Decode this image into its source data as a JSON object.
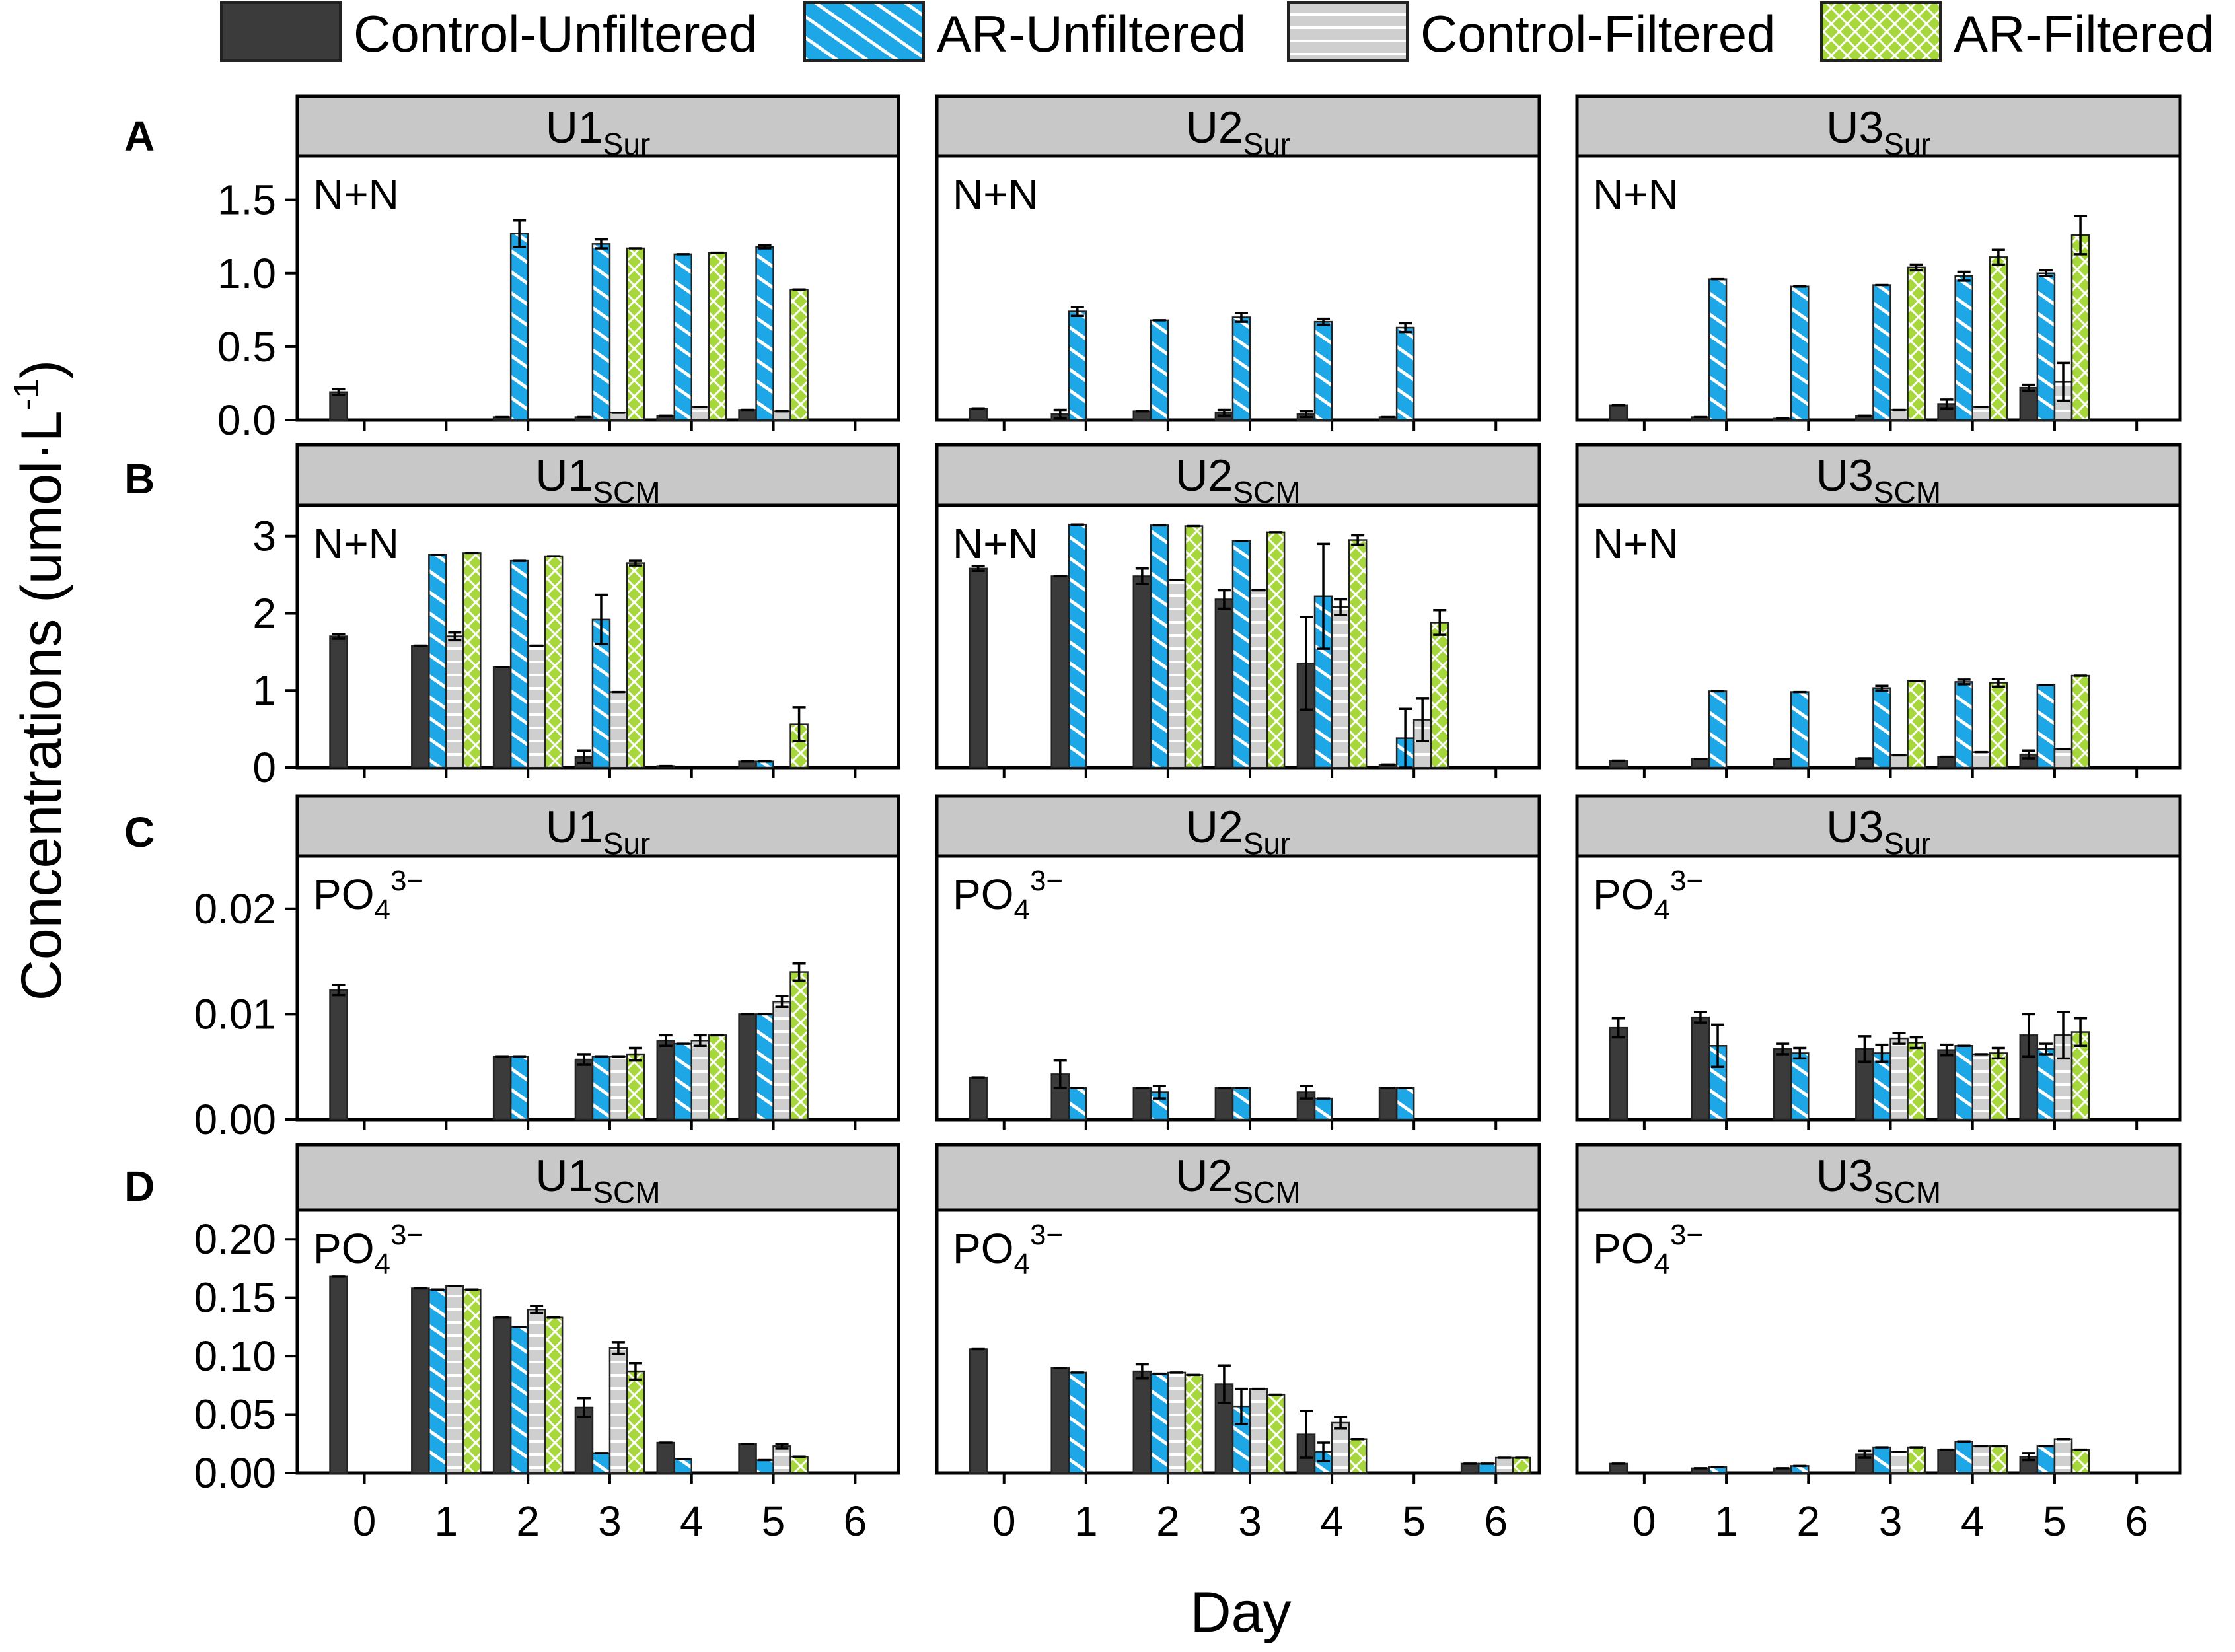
{
  "figure": {
    "ylabel": "Concentrations (umol·L",
    "ylabel_sup": "-1",
    "ylabel_close": ")",
    "xlabel": "Day"
  },
  "legend": [
    {
      "name": "Control-Unfiltered",
      "pattern": "solid"
    },
    {
      "name": "AR-Unfiltered",
      "pattern": "diag"
    },
    {
      "name": "Control-Filtered",
      "pattern": "horiz"
    },
    {
      "name": "AR-Filtered",
      "pattern": "cross"
    }
  ],
  "colors": {
    "control_unfiltered": "#3b3b3b",
    "ar_unfiltered": "#1ea7e6",
    "control_filtered": "#cfcfcf",
    "ar_filtered": "#a6d83b",
    "strip": "#c8c8c8"
  },
  "rows": [
    {
      "letter": "A",
      "ylim": [
        0,
        1.8
      ],
      "ticks": [
        "0.0",
        "0.5",
        "1.0",
        "1.5"
      ],
      "tick_values": [
        0,
        0.5,
        1.0,
        1.5
      ]
    },
    {
      "letter": "B",
      "ylim": [
        0,
        3.4
      ],
      "ticks": [
        "0",
        "1",
        "2",
        "3"
      ],
      "tick_values": [
        0,
        1,
        2,
        3
      ]
    },
    {
      "letter": "C",
      "ylim": [
        0,
        0.025
      ],
      "ticks": [
        "0.00",
        "0.01",
        "0.02"
      ],
      "tick_values": [
        0,
        0.01,
        0.02
      ]
    },
    {
      "letter": "D",
      "ylim": [
        0,
        0.225
      ],
      "ticks": [
        "0.00",
        "0.05",
        "0.10",
        "0.15",
        "0.20"
      ],
      "tick_values": [
        0,
        0.05,
        0.1,
        0.15,
        0.2
      ]
    }
  ],
  "chart_data": {
    "type": "bar",
    "x": [
      0,
      1,
      2,
      3,
      4,
      5,
      6
    ],
    "x_tick_labels": [
      "0",
      "1",
      "2",
      "3",
      "4",
      "5",
      "6"
    ],
    "panels": [
      {
        "row": 0,
        "col": 0,
        "station": "U1",
        "sub": "Sur",
        "label": "N+N",
        "label_sup": "",
        "series": [
          [
            0.19,
            null,
            0.02,
            0.02,
            0.03,
            0.07,
            null
          ],
          [
            null,
            null,
            1.27,
            1.2,
            1.13,
            1.18,
            null
          ],
          [
            null,
            null,
            null,
            0.05,
            0.09,
            0.06,
            null
          ],
          [
            null,
            null,
            null,
            1.17,
            1.14,
            0.89,
            null
          ]
        ],
        "errors": [
          [
            0.02,
            0,
            0,
            0,
            0,
            0,
            0
          ],
          [
            0,
            0,
            0.09,
            0.03,
            0,
            0.01,
            0
          ],
          [
            0,
            0,
            0,
            0,
            0,
            0,
            0
          ],
          [
            0,
            0,
            0,
            0,
            0,
            0,
            0
          ]
        ]
      },
      {
        "row": 0,
        "col": 1,
        "station": "U2",
        "sub": "Sur",
        "label": "N+N",
        "label_sup": "",
        "series": [
          [
            0.08,
            0.04,
            0.06,
            0.05,
            0.04,
            0.02,
            null
          ],
          [
            null,
            0.74,
            0.68,
            0.7,
            0.67,
            0.63,
            null
          ],
          [
            null,
            null,
            null,
            null,
            null,
            null,
            null
          ],
          [
            null,
            null,
            null,
            null,
            null,
            null,
            null
          ]
        ],
        "errors": [
          [
            0,
            0.03,
            0,
            0.02,
            0.02,
            0,
            0
          ],
          [
            0,
            0.03,
            0,
            0.03,
            0.02,
            0.03,
            0
          ],
          [
            0,
            0,
            0,
            0,
            0,
            0,
            0
          ],
          [
            0,
            0,
            0,
            0,
            0,
            0,
            0
          ]
        ]
      },
      {
        "row": 0,
        "col": 2,
        "station": "U3",
        "sub": "Sur",
        "label": "N+N",
        "label_sup": "",
        "series": [
          [
            0.1,
            0.02,
            0.01,
            0.03,
            0.11,
            0.22,
            null
          ],
          [
            null,
            0.96,
            0.91,
            0.92,
            0.98,
            1.0,
            null
          ],
          [
            null,
            null,
            null,
            0.07,
            0.09,
            0.26,
            null
          ],
          [
            null,
            null,
            null,
            1.04,
            1.11,
            1.26,
            null
          ]
        ],
        "errors": [
          [
            0,
            0,
            0,
            0,
            0.03,
            0.02,
            0
          ],
          [
            0,
            0,
            0,
            0,
            0.03,
            0.02,
            0
          ],
          [
            0,
            0,
            0,
            0,
            0,
            0.13,
            0
          ],
          [
            0,
            0,
            0,
            0.02,
            0.05,
            0.13,
            0
          ]
        ]
      },
      {
        "row": 1,
        "col": 0,
        "station": "U1",
        "sub": "SCM",
        "label": "N+N",
        "label_sup": "",
        "series": [
          [
            1.7,
            1.58,
            1.3,
            0.14,
            0.02,
            0.08,
            null
          ],
          [
            null,
            2.76,
            2.68,
            1.92,
            null,
            0.08,
            null
          ],
          [
            null,
            1.7,
            1.58,
            0.98,
            null,
            null,
            null
          ],
          [
            null,
            2.78,
            2.74,
            2.65,
            null,
            0.56,
            null
          ]
        ],
        "errors": [
          [
            0.03,
            0,
            0,
            0.08,
            0,
            0,
            0
          ],
          [
            0,
            0,
            0,
            0.32,
            0,
            0,
            0
          ],
          [
            0,
            0.05,
            0,
            0,
            0,
            0,
            0
          ],
          [
            0,
            0,
            0,
            0.03,
            0,
            0.22,
            0
          ]
        ]
      },
      {
        "row": 1,
        "col": 1,
        "station": "U2",
        "sub": "SCM",
        "label": "N+N",
        "label_sup": "",
        "series": [
          [
            2.58,
            2.48,
            2.48,
            2.18,
            1.35,
            0.04,
            null
          ],
          [
            null,
            3.15,
            3.14,
            2.94,
            2.22,
            0.38,
            null
          ],
          [
            null,
            null,
            2.43,
            2.3,
            2.08,
            0.62,
            null
          ],
          [
            null,
            null,
            3.13,
            3.05,
            2.95,
            1.88,
            null
          ]
        ],
        "errors": [
          [
            0.03,
            0,
            0.1,
            0.12,
            0.6,
            0,
            0
          ],
          [
            0,
            0,
            0,
            0,
            0.68,
            0.38,
            0
          ],
          [
            0,
            0,
            0,
            0,
            0.1,
            0.28,
            0
          ],
          [
            0,
            0,
            0,
            0,
            0.06,
            0.16,
            0
          ]
        ]
      },
      {
        "row": 1,
        "col": 2,
        "station": "U3",
        "sub": "SCM",
        "label": "N+N",
        "label_sup": "",
        "series": [
          [
            0.09,
            0.11,
            0.11,
            0.12,
            0.14,
            0.17,
            null
          ],
          [
            null,
            0.99,
            0.98,
            1.03,
            1.11,
            1.07,
            null
          ],
          [
            null,
            null,
            null,
            0.16,
            0.2,
            0.24,
            null
          ],
          [
            null,
            null,
            null,
            1.12,
            1.1,
            1.19,
            null
          ]
        ],
        "errors": [
          [
            0,
            0,
            0,
            0,
            0,
            0.05,
            0
          ],
          [
            0,
            0,
            0,
            0.03,
            0.03,
            0,
            0
          ],
          [
            0,
            0,
            0,
            0,
            0,
            0,
            0
          ],
          [
            0,
            0,
            0,
            0,
            0.05,
            0,
            0
          ]
        ]
      },
      {
        "row": 2,
        "col": 0,
        "station": "U1",
        "sub": "Sur",
        "label": "PO",
        "label_sup": "3−",
        "series": [
          [
            0.0123,
            null,
            0.006,
            0.0057,
            0.0075,
            0.01,
            null
          ],
          [
            null,
            null,
            0.006,
            0.006,
            0.0072,
            0.01,
            null
          ],
          [
            null,
            null,
            null,
            0.006,
            0.0075,
            0.0112,
            null
          ],
          [
            null,
            null,
            null,
            0.0062,
            0.008,
            0.014,
            null
          ]
        ],
        "errors": [
          [
            0.0005,
            0,
            0,
            0.0005,
            0.0005,
            0,
            0
          ],
          [
            0,
            0,
            0,
            0,
            0,
            0,
            0
          ],
          [
            0,
            0,
            0,
            0,
            0.0005,
            0.0005,
            0
          ],
          [
            0,
            0,
            0,
            0.0006,
            0,
            0.0008,
            0
          ]
        ]
      },
      {
        "row": 2,
        "col": 1,
        "station": "U2",
        "sub": "Sur",
        "label": "PO",
        "label_sup": "3−",
        "series": [
          [
            0.004,
            0.0043,
            0.003,
            0.003,
            0.0026,
            0.003,
            null
          ],
          [
            null,
            0.003,
            0.0026,
            0.003,
            0.002,
            0.003,
            null
          ],
          [
            null,
            null,
            null,
            null,
            null,
            null,
            null
          ],
          [
            null,
            null,
            null,
            null,
            null,
            null,
            null
          ]
        ],
        "errors": [
          [
            0,
            0.0013,
            0,
            0,
            0.0006,
            0,
            0
          ],
          [
            0,
            0,
            0.0006,
            0,
            0,
            0,
            0
          ],
          [
            0,
            0,
            0,
            0,
            0,
            0,
            0
          ],
          [
            0,
            0,
            0,
            0,
            0,
            0,
            0
          ]
        ]
      },
      {
        "row": 2,
        "col": 2,
        "station": "U3",
        "sub": "Sur",
        "label": "PO",
        "label_sup": "3−",
        "series": [
          [
            0.0087,
            0.0097,
            0.0067,
            0.0067,
            0.0066,
            0.008,
            null
          ],
          [
            null,
            0.007,
            0.0063,
            0.0063,
            0.007,
            0.0067,
            null
          ],
          [
            null,
            null,
            null,
            0.0077,
            0.0062,
            0.008,
            null
          ],
          [
            null,
            null,
            null,
            0.0073,
            0.0063,
            0.0083,
            null
          ]
        ],
        "errors": [
          [
            0.0009,
            0.0005,
            0.0005,
            0.0012,
            0.0005,
            0.002,
            0
          ],
          [
            0,
            0.002,
            0.0005,
            0.0008,
            0,
            0.0005,
            0
          ],
          [
            0,
            0,
            0,
            0.0005,
            0,
            0.0022,
            0
          ],
          [
            0,
            0,
            0,
            0.0005,
            0.0005,
            0.0013,
            0
          ]
        ]
      },
      {
        "row": 3,
        "col": 0,
        "station": "U1",
        "sub": "SCM",
        "label": "PO",
        "label_sup": "3−",
        "series": [
          [
            0.168,
            0.158,
            0.133,
            0.056,
            0.026,
            0.025,
            null
          ],
          [
            null,
            0.157,
            0.125,
            0.017,
            0.012,
            0.011,
            null
          ],
          [
            null,
            0.16,
            0.14,
            0.107,
            null,
            0.023,
            null
          ],
          [
            null,
            0.157,
            0.133,
            0.087,
            null,
            0.014,
            null
          ]
        ],
        "errors": [
          [
            0,
            0,
            0,
            0.008,
            0,
            0,
            0
          ],
          [
            0,
            0,
            0,
            0,
            0,
            0,
            0
          ],
          [
            0,
            0,
            0.003,
            0.005,
            0,
            0.002,
            0
          ],
          [
            0,
            0,
            0,
            0.007,
            0,
            0,
            0
          ]
        ]
      },
      {
        "row": 3,
        "col": 1,
        "station": "U2",
        "sub": "SCM",
        "label": "PO",
        "label_sup": "3−",
        "series": [
          [
            0.106,
            0.09,
            0.087,
            0.076,
            0.033,
            null,
            0.008
          ],
          [
            null,
            0.086,
            0.085,
            0.057,
            0.018,
            null,
            0.008
          ],
          [
            null,
            null,
            0.086,
            0.072,
            0.043,
            null,
            0.013
          ],
          [
            null,
            null,
            0.084,
            0.067,
            0.029,
            null,
            0.013
          ]
        ],
        "errors": [
          [
            0,
            0,
            0.006,
            0.016,
            0.02,
            0,
            0
          ],
          [
            0,
            0,
            0,
            0.015,
            0.008,
            0,
            0
          ],
          [
            0,
            0,
            0,
            0,
            0.005,
            0,
            0
          ],
          [
            0,
            0,
            0,
            0,
            0,
            0,
            0
          ]
        ]
      },
      {
        "row": 3,
        "col": 2,
        "station": "U3",
        "sub": "SCM",
        "label": "PO",
        "label_sup": "3−",
        "series": [
          [
            0.008,
            0.004,
            0.004,
            0.016,
            0.02,
            0.014,
            null
          ],
          [
            null,
            0.005,
            0.006,
            0.022,
            0.027,
            0.023,
            null
          ],
          [
            null,
            null,
            null,
            0.018,
            0.023,
            0.029,
            null
          ],
          [
            null,
            null,
            null,
            0.022,
            0.023,
            0.02,
            null
          ]
        ],
        "errors": [
          [
            0,
            0,
            0,
            0.003,
            0,
            0.003,
            0
          ],
          [
            0,
            0,
            0,
            0,
            0,
            0,
            0
          ],
          [
            0,
            0,
            0,
            0,
            0,
            0,
            0
          ],
          [
            0,
            0,
            0,
            0,
            0,
            0,
            0
          ]
        ]
      }
    ]
  }
}
